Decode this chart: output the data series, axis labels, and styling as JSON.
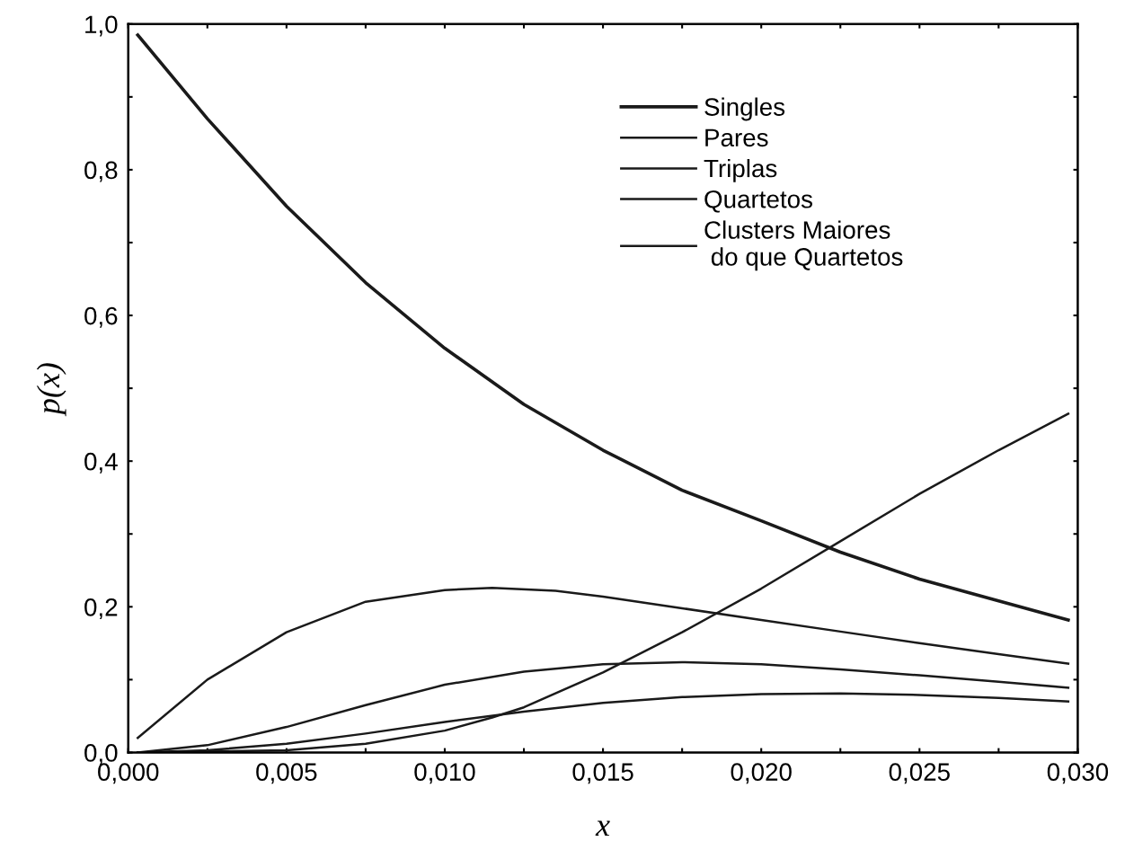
{
  "chart_data": {
    "type": "line",
    "xlabel": "x",
    "ylabel": "p(x)",
    "xlim": [
      0,
      0.03
    ],
    "ylim": [
      0,
      1.0
    ],
    "xticks": [
      {
        "value": 0,
        "label": "0,000"
      },
      {
        "value": 0.0025,
        "label": null
      },
      {
        "value": 0.005,
        "label": "0,005"
      },
      {
        "value": 0.0075,
        "label": null
      },
      {
        "value": 0.01,
        "label": "0,010"
      },
      {
        "value": 0.0125,
        "label": null
      },
      {
        "value": 0.015,
        "label": "0,015"
      },
      {
        "value": 0.0175,
        "label": null
      },
      {
        "value": 0.02,
        "label": "0,020"
      },
      {
        "value": 0.0225,
        "label": null
      },
      {
        "value": 0.025,
        "label": "0,025"
      },
      {
        "value": 0.0275,
        "label": null
      },
      {
        "value": 0.03,
        "label": "0,030"
      }
    ],
    "yticks": [
      {
        "value": 0,
        "label": "0,0"
      },
      {
        "value": 0.1,
        "label": null
      },
      {
        "value": 0.2,
        "label": "0,2"
      },
      {
        "value": 0.3,
        "label": null
      },
      {
        "value": 0.4,
        "label": "0,4"
      },
      {
        "value": 0.5,
        "label": null
      },
      {
        "value": 0.6,
        "label": "0,6"
      },
      {
        "value": 0.7,
        "label": null
      },
      {
        "value": 0.8,
        "label": "0,8"
      },
      {
        "value": 0.9,
        "label": null
      },
      {
        "value": 1.0,
        "label": "1,0"
      }
    ],
    "grid": false,
    "legend": "top right",
    "marker": "none",
    "line_style": "solid",
    "series": [
      {
        "name": "Singles",
        "color": "#1a1a1a",
        "x": [
          0.0003,
          0.0025,
          0.005,
          0.0075,
          0.01,
          0.0125,
          0.015,
          0.0175,
          0.02,
          0.0225,
          0.025,
          0.0275,
          0.0297
        ],
        "values": [
          0.985,
          0.87,
          0.75,
          0.645,
          0.555,
          0.478,
          0.415,
          0.36,
          0.318,
          0.275,
          0.238,
          0.208,
          0.182
        ]
      },
      {
        "name": "Pares",
        "color": "#1a1a1a",
        "x": [
          0.0003,
          0.0025,
          0.005,
          0.0075,
          0.01,
          0.0115,
          0.0135,
          0.015,
          0.0175,
          0.02,
          0.0225,
          0.025,
          0.0275,
          0.0297
        ],
        "values": [
          0.02,
          0.1,
          0.165,
          0.207,
          0.223,
          0.226,
          0.222,
          0.214,
          0.198,
          0.182,
          0.166,
          0.15,
          0.135,
          0.122
        ]
      },
      {
        "name": "Triplas",
        "color": "#1a1a1a",
        "x": [
          0.0003,
          0.0025,
          0.005,
          0.0075,
          0.01,
          0.0125,
          0.015,
          0.0175,
          0.02,
          0.0225,
          0.025,
          0.0275,
          0.0297
        ],
        "values": [
          0.0,
          0.01,
          0.035,
          0.065,
          0.093,
          0.111,
          0.121,
          0.124,
          0.121,
          0.114,
          0.106,
          0.097,
          0.089
        ]
      },
      {
        "name": "Quartetos",
        "color": "#1a1a1a",
        "x": [
          0.0003,
          0.0025,
          0.005,
          0.0075,
          0.01,
          0.0125,
          0.015,
          0.0175,
          0.02,
          0.0225,
          0.025,
          0.0275,
          0.0297
        ],
        "values": [
          0.0,
          0.003,
          0.012,
          0.026,
          0.042,
          0.056,
          0.068,
          0.076,
          0.08,
          0.081,
          0.079,
          0.075,
          0.07
        ]
      },
      {
        "name": "Clusters Maiores\n do que Quartetos",
        "color": "#1a1a1a",
        "x": [
          0.0003,
          0.005,
          0.0075,
          0.01,
          0.0115,
          0.0125,
          0.015,
          0.0175,
          0.02,
          0.0225,
          0.025,
          0.0275,
          0.0297
        ],
        "values": [
          0.0,
          0.003,
          0.012,
          0.03,
          0.048,
          0.062,
          0.11,
          0.165,
          0.225,
          0.29,
          0.355,
          0.415,
          0.465
        ]
      }
    ]
  }
}
